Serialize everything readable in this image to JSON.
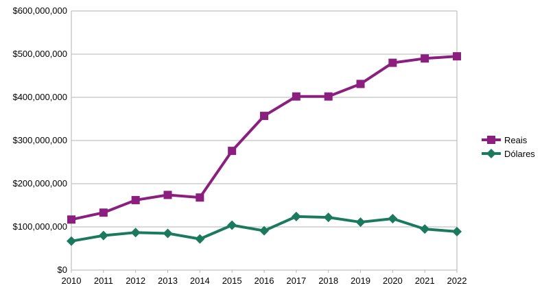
{
  "chart_data": {
    "type": "line",
    "title": "",
    "xlabel": "",
    "ylabel": "",
    "categories": [
      "2010",
      "2011",
      "2012",
      "2013",
      "2014",
      "2015",
      "2016",
      "2017",
      "2018",
      "2019",
      "2020",
      "2021",
      "2022"
    ],
    "ylim": [
      0,
      600000000
    ],
    "y_ticks": [
      0,
      100000000,
      200000000,
      300000000,
      400000000,
      500000000,
      600000000
    ],
    "y_tick_labels": [
      "$0",
      "$100,000,000",
      "$200,000,000",
      "$300,000,000",
      "$400,000,000",
      "$500,000,000",
      "$600,000,000"
    ],
    "grid": "horizontal",
    "legend_position": "right",
    "series": [
      {
        "name": "Reais",
        "color": "#8b1e7e",
        "marker": "square",
        "values": [
          117000000,
          133000000,
          162000000,
          174000000,
          168000000,
          276000000,
          357000000,
          402000000,
          402000000,
          431000000,
          480000000,
          490000000,
          495000000
        ]
      },
      {
        "name": "Dólares",
        "color": "#1a7a5e",
        "marker": "diamond",
        "values": [
          67000000,
          80000000,
          87000000,
          85000000,
          72000000,
          104000000,
          91000000,
          124000000,
          122000000,
          111000000,
          119000000,
          95000000,
          89000000
        ]
      }
    ]
  }
}
